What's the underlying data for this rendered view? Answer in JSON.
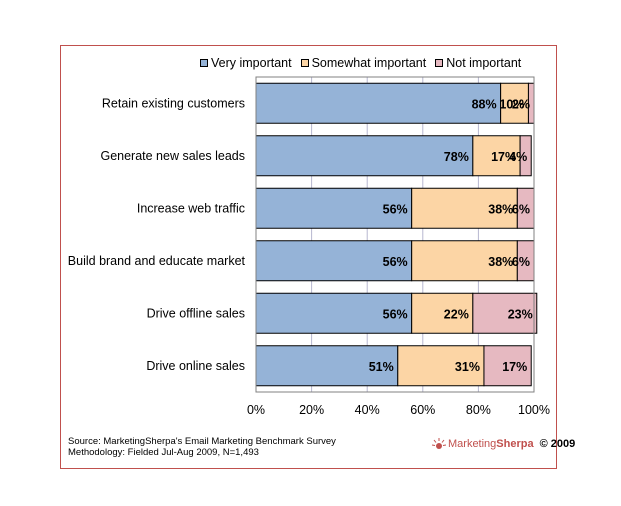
{
  "chart_data": {
    "type": "bar",
    "orientation": "horizontal",
    "stacked": true,
    "categories": [
      "Retain existing customers",
      "Generate new sales leads",
      "Increase web traffic",
      "Build brand and educate market",
      "Drive offline sales",
      "Drive online sales"
    ],
    "series": [
      {
        "name": "Very important",
        "values": [
          88,
          78,
          56,
          56,
          56,
          51
        ],
        "labels": [
          "88%",
          "78%",
          "56%",
          "56%",
          "56%",
          "51%"
        ],
        "color": "#95b3d7"
      },
      {
        "name": "Somewhat important",
        "values": [
          10,
          17,
          38,
          38,
          22,
          31
        ],
        "labels": [
          "10%",
          "17%",
          "38%",
          "38%",
          "22%",
          "31%"
        ],
        "color": "#fcd5a5"
      },
      {
        "name": "Not important",
        "values": [
          2,
          4,
          6,
          6,
          23,
          17
        ],
        "labels": [
          "2%",
          "4%",
          "6%",
          "6%",
          "23%",
          "17%"
        ],
        "color": "#e6b9c1"
      }
    ],
    "xlim": [
      0,
      100
    ],
    "xticks": [
      "0%",
      "20%",
      "40%",
      "60%",
      "80%",
      "100%"
    ],
    "xtick_values": [
      0,
      20,
      40,
      60,
      80,
      100
    ],
    "grid": true,
    "legend_position": "top-right",
    "title": "",
    "xlabel": "",
    "ylabel": ""
  },
  "source": {
    "line1": "Source: MarketingSherpa's Email Marketing Benchmark Survey",
    "line2": "Methodology: Fielded Jul-Aug 2009, N=1,493"
  },
  "logo": {
    "marketing": "Marketing",
    "sherpa": "Sherpa",
    "year": "© 2009"
  }
}
